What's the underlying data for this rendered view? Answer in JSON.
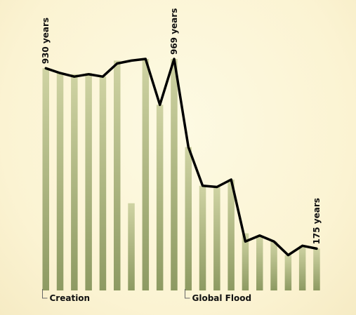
{
  "chart_data": {
    "type": "bar",
    "title": "",
    "xlabel": "",
    "ylabel": "",
    "ylim": [
      0,
      1000
    ],
    "bar_values": [
      930,
      912,
      905,
      910,
      895,
      962,
      365,
      969,
      777,
      969,
      600,
      438,
      433,
      464,
      239,
      230,
      205,
      148,
      187,
      175
    ],
    "line_values": [
      930,
      910,
      895,
      905,
      895,
      950,
      962,
      969,
      777,
      969,
      600,
      438,
      433,
      464,
      205,
      230,
      205,
      148,
      187,
      175
    ],
    "annotations": [
      {
        "text": "930 years",
        "index": 0
      },
      {
        "text": "969 years",
        "index": 9
      },
      {
        "text": "175 years",
        "index": 19
      }
    ],
    "markers": [
      {
        "text": "Creation",
        "index": 0
      },
      {
        "text": "Global Flood",
        "index": 10
      }
    ],
    "colors": {
      "bar_top": "#cfd3a3",
      "bar_bottom": "#8d9a62",
      "line": "#000000",
      "marker": "#666666"
    }
  }
}
